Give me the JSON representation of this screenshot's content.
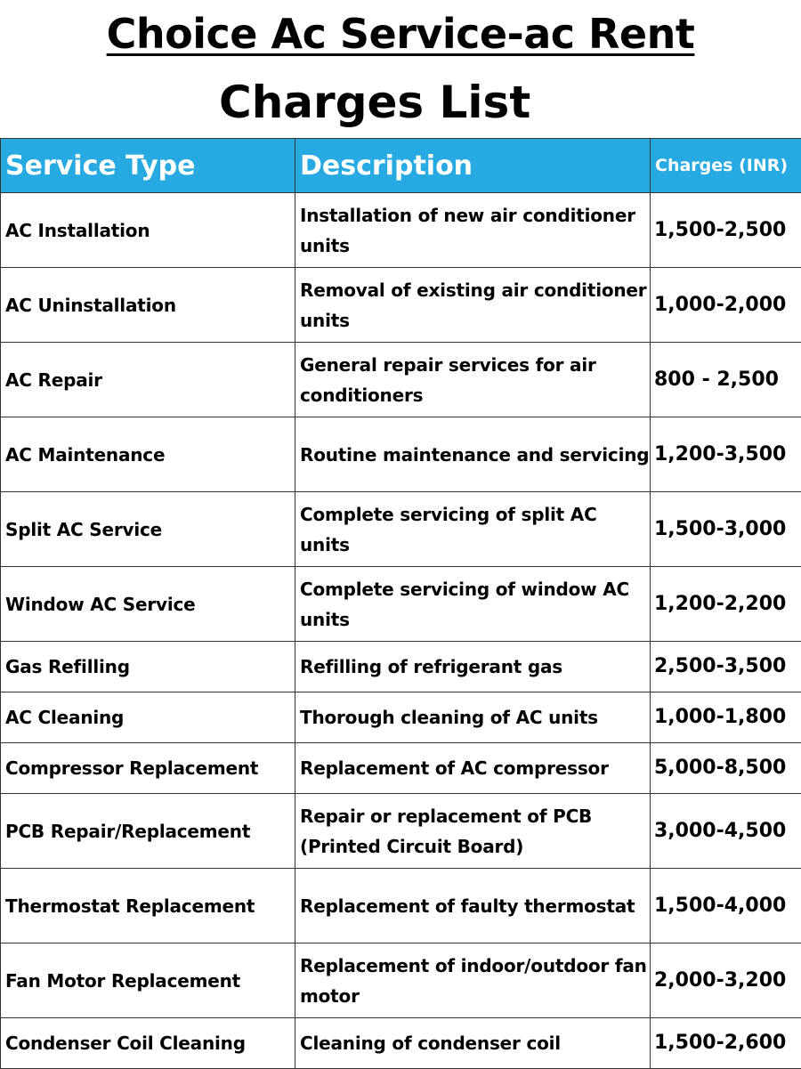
{
  "title": {
    "line1": "Choice Ac Service-ac Rent",
    "line2": "Charges List"
  },
  "table": {
    "headers": {
      "service": "Service Type",
      "description": "Description",
      "charges": "Charges (INR)"
    },
    "rows": [
      {
        "service": "AC Installation",
        "description": "Installation of new air conditioner units",
        "charges": "1,500-2,500"
      },
      {
        "service": "AC Uninstallation",
        "description": "Removal of existing air conditioner units",
        "charges": "1,000-2,000"
      },
      {
        "service": "AC Repair",
        "description": "General repair services for air conditioners",
        "charges": "800 - 2,500"
      },
      {
        "service": "AC Maintenance",
        "description": "Routine maintenance and servicing",
        "charges": "1,200-3,500"
      },
      {
        "service": "Split AC Service",
        "description": "Complete servicing of split AC units",
        "charges": "1,500-3,000"
      },
      {
        "service": "Window AC Service",
        "description": "Complete servicing of window AC units",
        "charges": "1,200-2,200"
      },
      {
        "service": "Gas Refilling",
        "description": "Refilling of refrigerant gas",
        "charges": "2,500-3,500"
      },
      {
        "service": "AC Cleaning",
        "description": "Thorough cleaning of AC units",
        "charges": "1,000-1,800"
      },
      {
        "service": "Compressor Replacement",
        "description": "Replacement of AC compressor",
        "charges": "5,000-8,500"
      },
      {
        "service": "PCB Repair/Replacement",
        "description": "Repair or replacement of PCB (Printed Circuit Board)",
        "charges": "3,000-4,500"
      },
      {
        "service": "Thermostat Replacement",
        "description": "Replacement of faulty thermostat",
        "charges": "1,500-4,000"
      },
      {
        "service": "Fan Motor Replacement",
        "description": "Replacement of indoor/outdoor fan motor",
        "charges": "2,000-3,200"
      },
      {
        "service": "Condenser Coil Cleaning",
        "description": "Cleaning of condenser coil",
        "charges": "1,500-2,600"
      }
    ]
  },
  "colors": {
    "header_bg": "#26aae1",
    "header_text": "#ffffff",
    "border": "#333333"
  }
}
